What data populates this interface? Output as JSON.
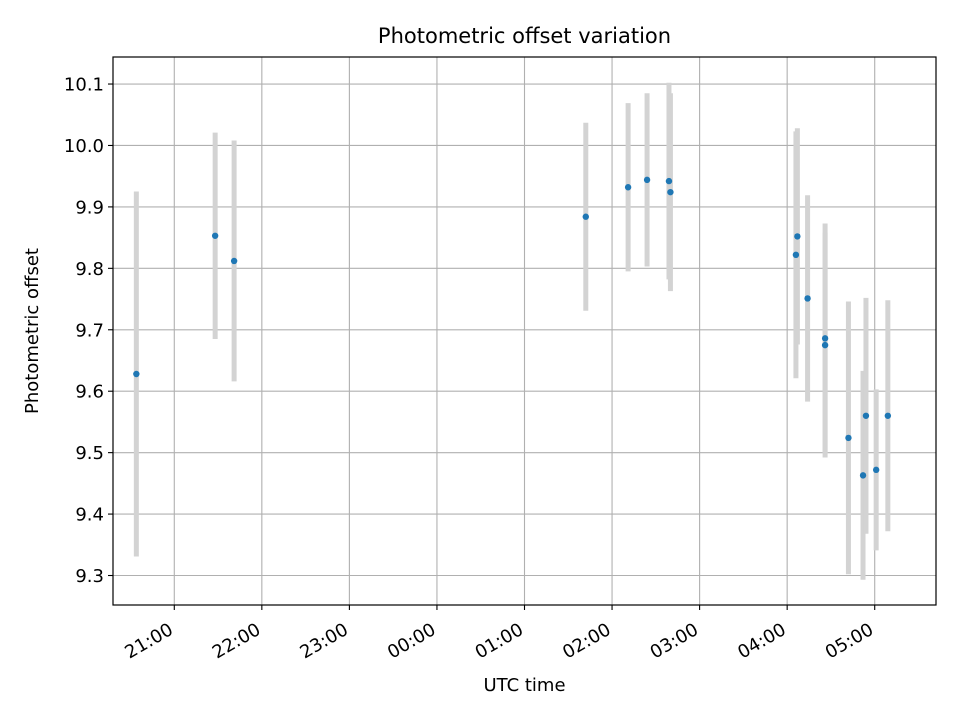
{
  "chart_data": {
    "type": "scatter",
    "title": "Photometric offset variation",
    "xlabel": "UTC time",
    "ylabel": "Photometric offset",
    "x_is_time": true,
    "xlim": [
      "20:18",
      "05:42"
    ],
    "ylim": [
      9.252,
      10.144
    ],
    "x_ticks": [
      "21:00",
      "22:00",
      "23:00",
      "00:00",
      "01:00",
      "02:00",
      "03:00",
      "04:00",
      "05:00"
    ],
    "y_ticks": [
      "9.3",
      "9.4",
      "9.5",
      "9.6",
      "9.7",
      "9.8",
      "9.9",
      "10.0",
      "10.1"
    ],
    "grid": true,
    "colors": {
      "point": "#1f77b4",
      "errorbar": "#d3d3d3",
      "grid": "#b0b0b0"
    },
    "points": [
      {
        "time": "20:34",
        "y": 9.628,
        "yerr": 0.297
      },
      {
        "time": "21:28",
        "y": 9.853,
        "yerr": 0.168
      },
      {
        "time": "21:41",
        "y": 9.812,
        "yerr": 0.196
      },
      {
        "time": "01:42",
        "y": 9.884,
        "yerr": 0.153
      },
      {
        "time": "02:11",
        "y": 9.932,
        "yerr": 0.137
      },
      {
        "time": "02:24",
        "y": 9.944,
        "yerr": 0.141
      },
      {
        "time": "02:39",
        "y": 9.942,
        "yerr": 0.16
      },
      {
        "time": "02:40",
        "y": 9.924,
        "yerr": 0.161
      },
      {
        "time": "04:06",
        "y": 9.822,
        "yerr": 0.201
      },
      {
        "time": "04:07",
        "y": 9.852,
        "yerr": 0.176
      },
      {
        "time": "04:14",
        "y": 9.751,
        "yerr": 0.168
      },
      {
        "time": "04:26",
        "y": 9.686,
        "yerr": 0.187
      },
      {
        "time": "04:26",
        "y": 9.675,
        "yerr": 0.183
      },
      {
        "time": "04:42",
        "y": 9.524,
        "yerr": 0.222
      },
      {
        "time": "04:52",
        "y": 9.463,
        "yerr": 0.17
      },
      {
        "time": "04:54",
        "y": 9.56,
        "yerr": 0.192
      },
      {
        "time": "05:01",
        "y": 9.472,
        "yerr": 0.131
      },
      {
        "time": "05:09",
        "y": 9.56,
        "yerr": 0.188
      }
    ]
  }
}
